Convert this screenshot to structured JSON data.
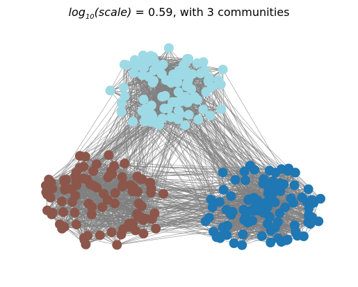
{
  "title": {
    "log_text": "log",
    "log_base": "10",
    "scale_text": "(scale)",
    "suffix_text": " =  0.59, with 3 communities"
  },
  "graph": {
    "log10_scale": 0.59,
    "community_count": 3,
    "edge_color": "#808080",
    "node_colors": [
      "#9edae5",
      "#8c564b",
      "#1f77b4"
    ]
  }
}
